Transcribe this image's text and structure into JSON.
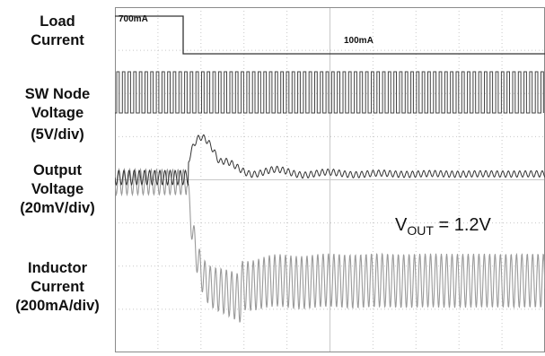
{
  "chart_data": {
    "type": "line",
    "title": "",
    "traces": [
      {
        "label_line1": "Load",
        "label_line2": "Current",
        "label_line3": ""
      },
      {
        "label_line1": "SW Node",
        "label_line2": "Voltage",
        "label_line3": "(5V/div)"
      },
      {
        "label_line1": "Output",
        "label_line2": "Voltage",
        "label_line3": "(20mV/div)"
      },
      {
        "label_line1": "Inductor",
        "label_line2": "Current",
        "label_line3": "(200mA/div)"
      }
    ],
    "load_step": {
      "before": "700mA",
      "after": "100mA"
    },
    "vout_annotation": {
      "main": "V",
      "sub": "OUT",
      "rest": " = 1.2V"
    },
    "grid": true,
    "grid_divisions": {
      "x": 10,
      "y": 8
    },
    "colors": {
      "trace": "#333333",
      "inductor": "#9a9a9a",
      "grid": "#c8c8c8",
      "frame": "#8a8a8a"
    }
  }
}
